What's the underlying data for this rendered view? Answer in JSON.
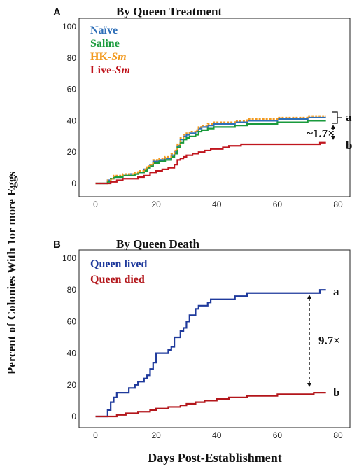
{
  "colors": {
    "naive": "#2e6fb8",
    "saline": "#1a9a3c",
    "hk": "#f29a1f",
    "live": "#c0161e",
    "lived": "#1f3a9c",
    "died": "#b3161b"
  },
  "ylabel": "Percent of Colonies With 1or more Eggs",
  "xlabel": "Days Post-Establishment",
  "chart_data": [
    {
      "type": "line",
      "panel_letter": "A",
      "title": "By Queen Treatment",
      "xlim": [
        -7,
        80
      ],
      "ylim": [
        0,
        100
      ],
      "xticks": [
        0,
        20,
        40,
        60,
        80
      ],
      "yticks": [
        0,
        20,
        40,
        60,
        80,
        100
      ],
      "legend": "top-left",
      "series": [
        {
          "name": "Naïve",
          "color_key": "naive",
          "dashed": false,
          "points": [
            [
              0,
              0
            ],
            [
              3,
              0
            ],
            [
              4,
              2
            ],
            [
              5,
              3
            ],
            [
              6,
              4
            ],
            [
              9,
              5
            ],
            [
              11,
              6
            ],
            [
              13,
              6
            ],
            [
              14,
              7
            ],
            [
              16,
              9
            ],
            [
              17,
              10
            ],
            [
              18,
              12
            ],
            [
              19,
              14
            ],
            [
              21,
              15
            ],
            [
              23,
              16
            ],
            [
              25,
              18
            ],
            [
              26,
              20
            ],
            [
              27,
              24
            ],
            [
              28,
              28
            ],
            [
              29,
              30
            ],
            [
              30,
              31
            ],
            [
              31,
              32
            ],
            [
              33,
              33
            ],
            [
              34,
              35
            ],
            [
              35,
              36
            ],
            [
              37,
              37
            ],
            [
              39,
              38
            ],
            [
              45,
              38
            ],
            [
              46,
              39
            ],
            [
              50,
              40
            ],
            [
              58,
              40
            ],
            [
              60,
              41
            ],
            [
              68,
              41
            ],
            [
              70,
              42
            ],
            [
              76,
              42
            ]
          ]
        },
        {
          "name": "Saline",
          "color_key": "saline",
          "dashed": false,
          "points": [
            [
              0,
              0
            ],
            [
              3,
              0
            ],
            [
              4,
              1
            ],
            [
              5,
              3
            ],
            [
              6,
              4
            ],
            [
              9,
              5
            ],
            [
              11,
              5
            ],
            [
              13,
              6
            ],
            [
              14,
              7
            ],
            [
              16,
              8
            ],
            [
              17,
              10
            ],
            [
              18,
              11
            ],
            [
              19,
              13
            ],
            [
              21,
              14
            ],
            [
              23,
              15
            ],
            [
              25,
              17
            ],
            [
              26,
              19
            ],
            [
              27,
              23
            ],
            [
              28,
              26
            ],
            [
              29,
              28
            ],
            [
              30,
              29
            ],
            [
              31,
              30
            ],
            [
              33,
              31
            ],
            [
              34,
              33
            ],
            [
              35,
              34
            ],
            [
              37,
              35
            ],
            [
              39,
              36
            ],
            [
              45,
              36
            ],
            [
              46,
              37
            ],
            [
              50,
              38
            ],
            [
              58,
              38
            ],
            [
              60,
              39
            ],
            [
              68,
              39
            ],
            [
              70,
              40
            ],
            [
              76,
              40
            ]
          ]
        },
        {
          "name": "HK-Sm",
          "color_key": "hk",
          "dashed": true,
          "points": [
            [
              0,
              0
            ],
            [
              3,
              0
            ],
            [
              4,
              2
            ],
            [
              5,
              3
            ],
            [
              6,
              5
            ],
            [
              9,
              6
            ],
            [
              11,
              6
            ],
            [
              13,
              7
            ],
            [
              14,
              8
            ],
            [
              16,
              9
            ],
            [
              17,
              11
            ],
            [
              18,
              12
            ],
            [
              19,
              15
            ],
            [
              21,
              16
            ],
            [
              23,
              17
            ],
            [
              25,
              19
            ],
            [
              26,
              21
            ],
            [
              27,
              25
            ],
            [
              28,
              29
            ],
            [
              29,
              31
            ],
            [
              30,
              32
            ],
            [
              31,
              33
            ],
            [
              33,
              34
            ],
            [
              34,
              36
            ],
            [
              35,
              37
            ],
            [
              37,
              38
            ],
            [
              39,
              39
            ],
            [
              45,
              39
            ],
            [
              46,
              40
            ],
            [
              50,
              41
            ],
            [
              58,
              41
            ],
            [
              60,
              42
            ],
            [
              68,
              42
            ],
            [
              70,
              43
            ],
            [
              76,
              43
            ]
          ]
        },
        {
          "name": "Live-Sm",
          "color_key": "live",
          "dashed": false,
          "points": [
            [
              0,
              0
            ],
            [
              4,
              0
            ],
            [
              5,
              1
            ],
            [
              7,
              2
            ],
            [
              9,
              3
            ],
            [
              12,
              3
            ],
            [
              14,
              4
            ],
            [
              16,
              5
            ],
            [
              18,
              7
            ],
            [
              20,
              8
            ],
            [
              22,
              9
            ],
            [
              24,
              10
            ],
            [
              26,
              12
            ],
            [
              27,
              15
            ],
            [
              28,
              16
            ],
            [
              29,
              17
            ],
            [
              30,
              18
            ],
            [
              32,
              19
            ],
            [
              34,
              20
            ],
            [
              36,
              21
            ],
            [
              38,
              22
            ],
            [
              40,
              22
            ],
            [
              42,
              23
            ],
            [
              44,
              24
            ],
            [
              46,
              24
            ],
            [
              48,
              25
            ],
            [
              56,
              25
            ],
            [
              68,
              25
            ],
            [
              74,
              26
            ],
            [
              76,
              26
            ]
          ]
        }
      ],
      "annotations": {
        "upper": "a",
        "lower": "b",
        "ratio": "~1.7×"
      }
    },
    {
      "type": "line",
      "panel_letter": "B",
      "title": "By Queen Death",
      "xlim": [
        -7,
        80
      ],
      "ylim": [
        0,
        100
      ],
      "xticks": [
        0,
        20,
        40,
        60,
        80
      ],
      "yticks": [
        0,
        20,
        40,
        60,
        80,
        100
      ],
      "legend": "top-left",
      "series": [
        {
          "name": "Queen lived",
          "color_key": "lived",
          "dashed": false,
          "points": [
            [
              0,
              0
            ],
            [
              3,
              0
            ],
            [
              4,
              4
            ],
            [
              5,
              9
            ],
            [
              6,
              12
            ],
            [
              7,
              15
            ],
            [
              10,
              15
            ],
            [
              11,
              18
            ],
            [
              13,
              20
            ],
            [
              14,
              22
            ],
            [
              16,
              24
            ],
            [
              17,
              26
            ],
            [
              18,
              30
            ],
            [
              19,
              34
            ],
            [
              20,
              40
            ],
            [
              23,
              40
            ],
            [
              24,
              42
            ],
            [
              25,
              44
            ],
            [
              26,
              50
            ],
            [
              28,
              54
            ],
            [
              29,
              56
            ],
            [
              30,
              60
            ],
            [
              31,
              64
            ],
            [
              33,
              68
            ],
            [
              34,
              70
            ],
            [
              37,
              72
            ],
            [
              38,
              74
            ],
            [
              45,
              74
            ],
            [
              46,
              76
            ],
            [
              50,
              78
            ],
            [
              68,
              78
            ],
            [
              74,
              80
            ],
            [
              76,
              80
            ]
          ]
        },
        {
          "name": "Queen died",
          "color_key": "died",
          "dashed": false,
          "points": [
            [
              0,
              0
            ],
            [
              5,
              0
            ],
            [
              7,
              1
            ],
            [
              10,
              2
            ],
            [
              14,
              3
            ],
            [
              18,
              4
            ],
            [
              20,
              5
            ],
            [
              24,
              6
            ],
            [
              28,
              7
            ],
            [
              30,
              8
            ],
            [
              33,
              9
            ],
            [
              36,
              10
            ],
            [
              40,
              11
            ],
            [
              44,
              12
            ],
            [
              50,
              13
            ],
            [
              58,
              13
            ],
            [
              60,
              14
            ],
            [
              68,
              14
            ],
            [
              72,
              15
            ],
            [
              76,
              15
            ]
          ]
        }
      ],
      "annotations": {
        "upper": "a",
        "lower": "b",
        "ratio": "9.7×"
      }
    }
  ]
}
